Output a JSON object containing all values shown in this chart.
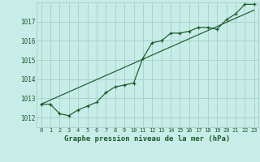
{
  "xlabel": "Graphe pression niveau de la mer (hPa)",
  "background_color": "#c8ece8",
  "grid_color": "#a8d4cc",
  "line_color": "#1a5c2a",
  "ylim": [
    1011.5,
    1018.0
  ],
  "xlim": [
    -0.5,
    23.5
  ],
  "yticks": [
    1012,
    1013,
    1014,
    1015,
    1016,
    1017
  ],
  "xticks": [
    0,
    1,
    2,
    3,
    4,
    5,
    6,
    7,
    8,
    9,
    10,
    11,
    12,
    13,
    14,
    15,
    16,
    17,
    18,
    19,
    20,
    21,
    22,
    23
  ],
  "series1_x": [
    0,
    1,
    2,
    3,
    4,
    5,
    6,
    7,
    8,
    9,
    10,
    11,
    12,
    13,
    14,
    15,
    16,
    17,
    18,
    19,
    20,
    21,
    22,
    23
  ],
  "series1_y": [
    1012.7,
    1012.7,
    1012.2,
    1012.1,
    1012.4,
    1012.6,
    1012.8,
    1013.3,
    1013.6,
    1013.7,
    1013.8,
    1015.1,
    1015.9,
    1016.0,
    1016.4,
    1016.4,
    1016.5,
    1016.7,
    1016.7,
    1016.6,
    1017.1,
    1017.4,
    1017.9,
    1017.9
  ],
  "series2_x": [
    0,
    23
  ],
  "series2_y": [
    1012.7,
    1017.6
  ]
}
